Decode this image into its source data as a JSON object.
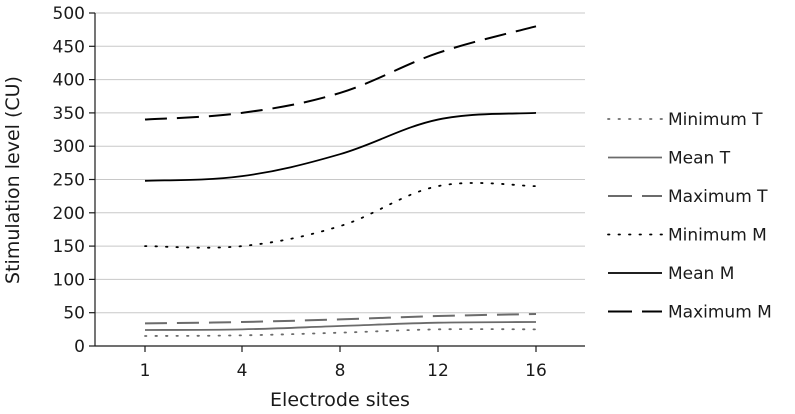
{
  "chart_data": {
    "type": "line",
    "title": "",
    "xlabel": "Electrode sites",
    "ylabel": "Stimulation level (CU)",
    "categories": [
      "1",
      "4",
      "8",
      "12",
      "16"
    ],
    "ylim": [
      0,
      500
    ],
    "yticks": [
      "0",
      "50",
      "100",
      "150",
      "200",
      "250",
      "300",
      "350",
      "400",
      "450",
      "500"
    ],
    "grid": "horizontal",
    "legend_position": "right",
    "series": [
      {
        "name": "Minimum T",
        "values": [
          15,
          16,
          20,
          25,
          25
        ],
        "color": "#6b6b6b",
        "style": "dotted"
      },
      {
        "name": "Mean T",
        "values": [
          24,
          25,
          30,
          35,
          36
        ],
        "color": "#6b6b6b",
        "style": "solid"
      },
      {
        "name": "Maximum T",
        "values": [
          34,
          36,
          40,
          45,
          48
        ],
        "color": "#6b6b6b",
        "style": "dashed"
      },
      {
        "name": "Minimum M",
        "values": [
          150,
          150,
          180,
          240,
          240
        ],
        "color": "#000000",
        "style": "dotted"
      },
      {
        "name": "Mean M",
        "values": [
          248,
          255,
          288,
          340,
          350
        ],
        "color": "#000000",
        "style": "solid"
      },
      {
        "name": "Maximum M",
        "values": [
          340,
          350,
          380,
          440,
          480
        ],
        "color": "#000000",
        "style": "dashed"
      }
    ]
  }
}
